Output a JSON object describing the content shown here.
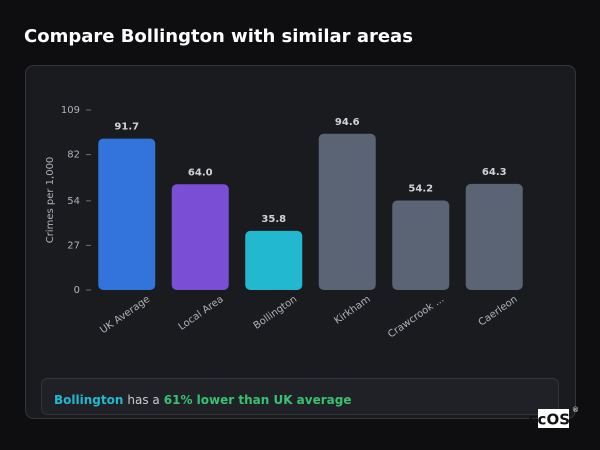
{
  "chart_data": {
    "type": "bar",
    "title": "Compare Bollington with similar areas",
    "ylabel": "Crimes per 1,000",
    "categories": [
      "UK Average",
      "Local Area",
      "Bollington",
      "Kirkham",
      "Crawcrook ...",
      "Caerleon"
    ],
    "values": [
      91.7,
      64.0,
      35.8,
      94.6,
      54.2,
      64.3
    ],
    "value_labels": [
      "91.7",
      "64.0",
      "35.8",
      "94.6",
      "54.2",
      "64.3"
    ],
    "colors": [
      "#3273dc",
      "#7a4fd6",
      "#22b8cf",
      "#5a6474",
      "#5a6474",
      "#5a6474"
    ],
    "ylim": [
      0,
      109
    ],
    "yticks": [
      0,
      27,
      54,
      82,
      109
    ],
    "grid": false
  },
  "summary": {
    "area": "Bollington",
    "text": "has a",
    "highlight": "61% lower than UK average"
  },
  "logo": {
    "text": "scOS",
    "mark": "®"
  }
}
